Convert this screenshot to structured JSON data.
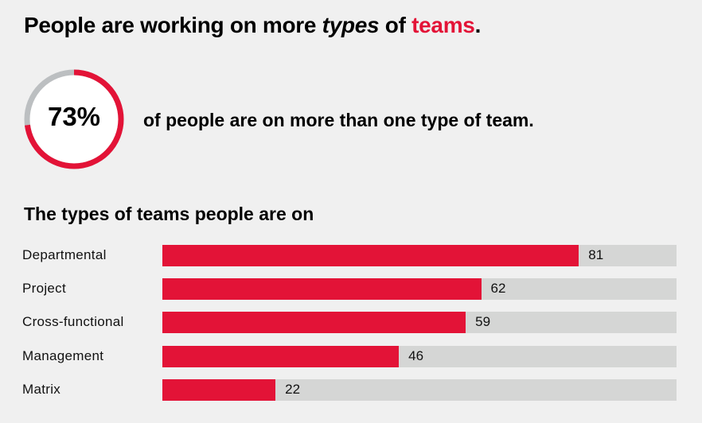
{
  "title": {
    "part1": "People are working on more ",
    "italic": "types",
    "part2": " of ",
    "accent": "teams",
    "end": "."
  },
  "highlight": {
    "percent_label": "73%",
    "percent": 73,
    "text": "of people are on more than one type of team."
  },
  "colors": {
    "accent": "#e31337",
    "track": "#d5d6d5",
    "donut_rest": "#bcbfc1",
    "background": "#f0f0f0"
  },
  "chart_data": {
    "type": "bar",
    "orientation": "horizontal",
    "title": "The types of teams people are on",
    "categories": [
      "Departmental",
      "Project",
      "Cross-functional",
      "Management",
      "Matrix"
    ],
    "values": [
      81,
      62,
      59,
      46,
      22
    ],
    "value_labels": [
      "81",
      "62",
      "59",
      "46",
      "22"
    ],
    "xlim": [
      0,
      100
    ],
    "grid": false
  }
}
